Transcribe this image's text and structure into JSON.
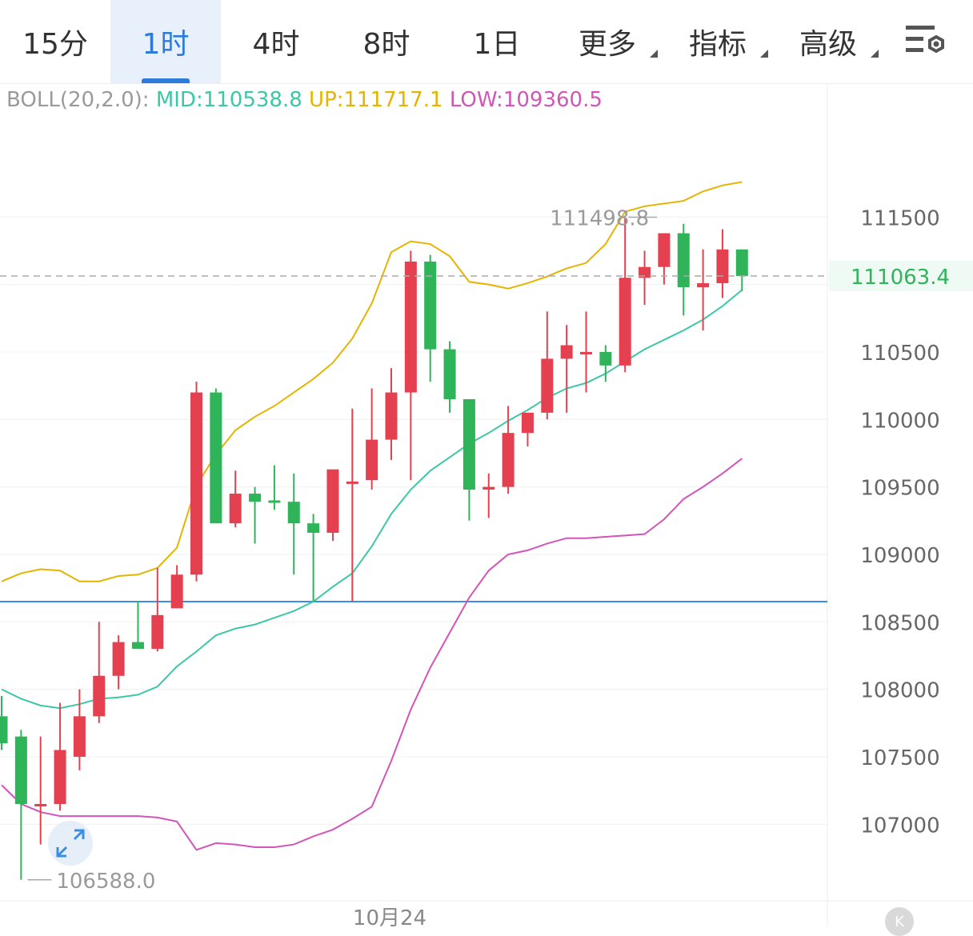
{
  "tabs": [
    {
      "label": "15分",
      "active": false,
      "dropdown": false
    },
    {
      "label": "1时",
      "active": true,
      "dropdown": false
    },
    {
      "label": "4时",
      "active": false,
      "dropdown": false
    },
    {
      "label": "8时",
      "active": false,
      "dropdown": false
    },
    {
      "label": "1日",
      "active": false,
      "dropdown": false
    },
    {
      "label": "更多",
      "active": false,
      "dropdown": true
    },
    {
      "label": "指标",
      "active": false,
      "dropdown": true
    },
    {
      "label": "高级",
      "active": false,
      "dropdown": true
    }
  ],
  "toolbar": {
    "settings_icon": "chart-settings-icon"
  },
  "boll": {
    "label": "BOLL(20,2.0):",
    "mid": "MID:110538.8",
    "up": "UP:111717.1",
    "low": "LOW:109360.5"
  },
  "chart_data": {
    "type": "candlestick",
    "ylim": [
      106400,
      112300
    ],
    "y_ticks": [
      "111500",
      "110500",
      "110000",
      "109500",
      "109000",
      "108500",
      "108000",
      "107500",
      "107000"
    ],
    "x_label": "10月24",
    "x_label_index": 20,
    "last_price": "111063.4",
    "last_price_value": 111063.4,
    "high_marker": "111498.8",
    "high_marker_value": 111498.8,
    "high_marker_index": 32,
    "low_marker": "106588.0",
    "low_marker_value": 106588.0,
    "low_marker_index": 1,
    "horizontal_line_value": 108650,
    "colors": {
      "up": "#e5404f",
      "down": "#2fb45a",
      "mid": "#3cc7a6",
      "upper": "#e6b400",
      "lower": "#d355b7",
      "hline": "#3a8ee6"
    },
    "candles": [
      {
        "o": 107800,
        "h": 107950,
        "l": 107550,
        "c": 107600
      },
      {
        "o": 107650,
        "h": 107700,
        "l": 106588,
        "c": 107150
      },
      {
        "o": 107150,
        "h": 107650,
        "l": 106850,
        "c": 107150
      },
      {
        "o": 107150,
        "h": 107900,
        "l": 107100,
        "c": 107550
      },
      {
        "o": 107500,
        "h": 108000,
        "l": 107400,
        "c": 107800
      },
      {
        "o": 107800,
        "h": 108500,
        "l": 107750,
        "c": 108100
      },
      {
        "o": 108100,
        "h": 108400,
        "l": 108000,
        "c": 108350
      },
      {
        "o": 108350,
        "h": 108650,
        "l": 108300,
        "c": 108300
      },
      {
        "o": 108300,
        "h": 108900,
        "l": 108280,
        "c": 108550
      },
      {
        "o": 108600,
        "h": 108920,
        "l": 108600,
        "c": 108850
      },
      {
        "o": 108850,
        "h": 110280,
        "l": 108800,
        "c": 110200
      },
      {
        "o": 110200,
        "h": 110230,
        "l": 109230,
        "c": 109230
      },
      {
        "o": 109230,
        "h": 109620,
        "l": 109200,
        "c": 109450
      },
      {
        "o": 109450,
        "h": 109500,
        "l": 109080,
        "c": 109390
      },
      {
        "o": 109400,
        "h": 109660,
        "l": 109330,
        "c": 109390
      },
      {
        "o": 109390,
        "h": 109600,
        "l": 108850,
        "c": 109230
      },
      {
        "o": 109230,
        "h": 109300,
        "l": 108650,
        "c": 109160
      },
      {
        "o": 109160,
        "h": 109600,
        "l": 109100,
        "c": 109630
      },
      {
        "o": 109530,
        "h": 110080,
        "l": 108650,
        "c": 109540
      },
      {
        "o": 109550,
        "h": 110230,
        "l": 109480,
        "c": 109850
      },
      {
        "o": 109850,
        "h": 110380,
        "l": 109700,
        "c": 110200
      },
      {
        "o": 110200,
        "h": 111250,
        "l": 109550,
        "c": 111170
      },
      {
        "o": 111170,
        "h": 111220,
        "l": 110280,
        "c": 110520
      },
      {
        "o": 110520,
        "h": 110580,
        "l": 110050,
        "c": 110150
      },
      {
        "o": 110150,
        "h": 110150,
        "l": 109250,
        "c": 109480
      },
      {
        "o": 109480,
        "h": 109600,
        "l": 109270,
        "c": 109500
      },
      {
        "o": 109500,
        "h": 110100,
        "l": 109450,
        "c": 109900
      },
      {
        "o": 109900,
        "h": 110050,
        "l": 109800,
        "c": 110050
      },
      {
        "o": 110050,
        "h": 110800,
        "l": 110000,
        "c": 110450
      },
      {
        "o": 110450,
        "h": 110700,
        "l": 110050,
        "c": 110550
      },
      {
        "o": 110500,
        "h": 110800,
        "l": 110200,
        "c": 110500
      },
      {
        "o": 110500,
        "h": 110550,
        "l": 110280,
        "c": 110400
      },
      {
        "o": 110400,
        "h": 111498.8,
        "l": 110350,
        "c": 111050
      },
      {
        "o": 111050,
        "h": 111250,
        "l": 110850,
        "c": 111130
      },
      {
        "o": 111130,
        "h": 111380,
        "l": 111000,
        "c": 111380
      },
      {
        "o": 111380,
        "h": 111450,
        "l": 110770,
        "c": 110980
      },
      {
        "o": 110980,
        "h": 111260,
        "l": 110660,
        "c": 111010
      },
      {
        "o": 111010,
        "h": 111410,
        "l": 110900,
        "c": 111260
      },
      {
        "o": 111260,
        "h": 111260,
        "l": 110950,
        "c": 111063.4
      }
    ],
    "boll_mid": [
      108000,
      107930,
      107880,
      107860,
      107890,
      107930,
      107940,
      107960,
      108020,
      108170,
      108280,
      108400,
      108450,
      108480,
      108530,
      108580,
      108650,
      108760,
      108860,
      109060,
      109300,
      109480,
      109620,
      109720,
      109820,
      109900,
      109990,
      110070,
      110160,
      110230,
      110270,
      110340,
      110430,
      110520,
      110590,
      110660,
      110740,
      110840,
      110960
    ],
    "boll_up": [
      108800,
      108860,
      108890,
      108880,
      108800,
      108800,
      108840,
      108850,
      108900,
      109050,
      109510,
      109740,
      109920,
      110020,
      110100,
      110200,
      110300,
      110420,
      110600,
      110860,
      111240,
      111320,
      111300,
      111210,
      111020,
      111000,
      110970,
      111010,
      111060,
      111120,
      111160,
      111300,
      111540,
      111580,
      111600,
      111620,
      111690,
      111735,
      111760
    ],
    "boll_low": [
      107290,
      107150,
      107090,
      107060,
      107060,
      107060,
      107060,
      107060,
      107050,
      107020,
      106810,
      106860,
      106850,
      106830,
      106830,
      106850,
      106910,
      106960,
      107040,
      107130,
      107470,
      107850,
      108160,
      108420,
      108680,
      108880,
      109000,
      109030,
      109080,
      109120,
      109120,
      109130,
      109140,
      109150,
      109260,
      109410,
      109500,
      109600,
      109710
    ]
  }
}
